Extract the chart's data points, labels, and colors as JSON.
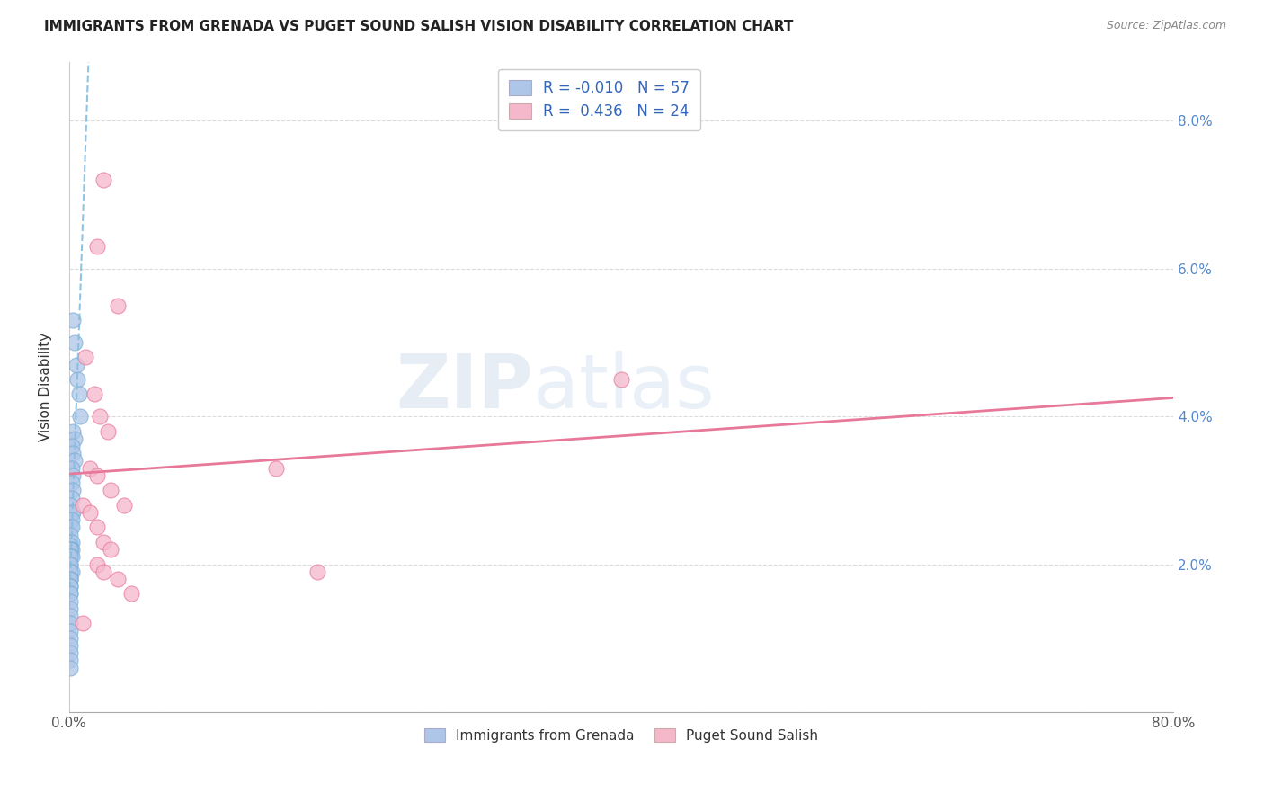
{
  "title": "IMMIGRANTS FROM GRENADA VS PUGET SOUND SALISH VISION DISABILITY CORRELATION CHART",
  "source": "Source: ZipAtlas.com",
  "ylabel": "Vision Disability",
  "xlim": [
    0.0,
    0.8
  ],
  "ylim": [
    0.0,
    0.088
  ],
  "xticks": [
    0.0,
    0.1,
    0.2,
    0.3,
    0.4,
    0.5,
    0.6,
    0.7,
    0.8
  ],
  "xticklabels": [
    "0.0%",
    "",
    "",
    "",
    "",
    "",
    "",
    "",
    "80.0%"
  ],
  "yticks": [
    0.0,
    0.02,
    0.04,
    0.06,
    0.08
  ],
  "yticklabels": [
    "",
    "2.0%",
    "4.0%",
    "6.0%",
    "8.0%"
  ],
  "blue_R": "-0.010",
  "blue_N": "57",
  "pink_R": "0.436",
  "pink_N": "24",
  "blue_color": "#aec6e8",
  "pink_color": "#f5b8cb",
  "blue_edge_color": "#7aadd4",
  "pink_edge_color": "#e8789a",
  "blue_line_color": "#85bde0",
  "pink_line_color": "#e8789a",
  "watermark": "ZIPatlas",
  "legend_label_blue": "Immigrants from Grenada",
  "legend_label_pink": "Puget Sound Salish",
  "blue_points_x": [
    0.003,
    0.004,
    0.005,
    0.006,
    0.007,
    0.008,
    0.003,
    0.004,
    0.002,
    0.003,
    0.004,
    0.002,
    0.003,
    0.002,
    0.003,
    0.002,
    0.001,
    0.002,
    0.003,
    0.001,
    0.002,
    0.001,
    0.002,
    0.001,
    0.001,
    0.002,
    0.001,
    0.001,
    0.001,
    0.002,
    0.001,
    0.001,
    0.001,
    0.001,
    0.002,
    0.001,
    0.001,
    0.001,
    0.002,
    0.001,
    0.001,
    0.001,
    0.001,
    0.001,
    0.001,
    0.001,
    0.001,
    0.001,
    0.001,
    0.001,
    0.001,
    0.001,
    0.001,
    0.001,
    0.001,
    0.001,
    0.001
  ],
  "blue_points_y": [
    0.053,
    0.05,
    0.047,
    0.045,
    0.043,
    0.04,
    0.038,
    0.037,
    0.036,
    0.035,
    0.034,
    0.033,
    0.032,
    0.031,
    0.03,
    0.029,
    0.028,
    0.027,
    0.027,
    0.026,
    0.026,
    0.025,
    0.025,
    0.024,
    0.023,
    0.023,
    0.0225,
    0.022,
    0.022,
    0.022,
    0.022,
    0.022,
    0.022,
    0.021,
    0.021,
    0.021,
    0.02,
    0.02,
    0.019,
    0.019,
    0.018,
    0.018,
    0.018,
    0.017,
    0.017,
    0.016,
    0.016,
    0.015,
    0.014,
    0.013,
    0.012,
    0.011,
    0.01,
    0.009,
    0.008,
    0.007,
    0.006
  ],
  "pink_points_x": [
    0.025,
    0.02,
    0.035,
    0.012,
    0.018,
    0.022,
    0.028,
    0.015,
    0.02,
    0.03,
    0.04,
    0.01,
    0.015,
    0.02,
    0.025,
    0.03,
    0.4,
    0.15,
    0.01,
    0.02,
    0.18,
    0.025,
    0.035,
    0.045
  ],
  "pink_points_y": [
    0.072,
    0.063,
    0.055,
    0.048,
    0.043,
    0.04,
    0.038,
    0.033,
    0.032,
    0.03,
    0.028,
    0.028,
    0.027,
    0.025,
    0.023,
    0.022,
    0.045,
    0.033,
    0.012,
    0.02,
    0.019,
    0.019,
    0.018,
    0.016
  ]
}
